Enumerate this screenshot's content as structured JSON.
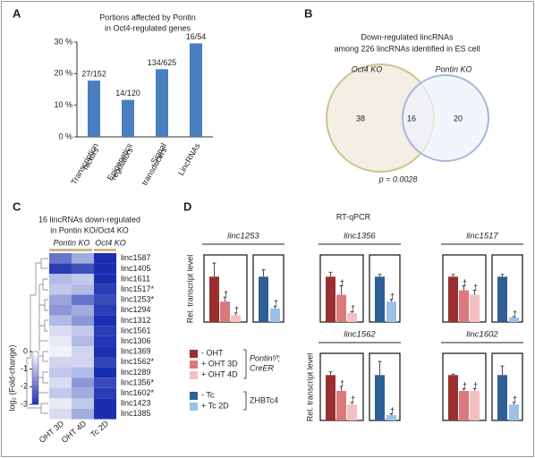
{
  "chart_data": [
    {
      "type": "bar",
      "panel": "A",
      "title": [
        "Portions affected by Pontin",
        "in Oct4-regulated genes"
      ],
      "categories": [
        [
          "Transcription",
          "factors"
        ],
        [
          "Epigenetics",
          "regulators"
        ],
        [
          "Signal",
          "transducers"
        ],
        [
          "LincRNAs"
        ]
      ],
      "values": [
        17.8,
        11.7,
        21.4,
        29.6
      ],
      "value_labels": [
        "27/152",
        "14/120",
        "134/625",
        "16/54"
      ],
      "color": "#4a7fbf",
      "ylim": [
        0,
        30
      ],
      "yticks": [
        {
          "value": 0,
          "label": "0 %"
        },
        {
          "value": 10,
          "label": "10 %"
        },
        {
          "value": 20,
          "label": "20 %"
        },
        {
          "value": 30,
          "label": "30 %"
        }
      ]
    },
    {
      "type": "venn",
      "panel": "B",
      "title": [
        "Down-regulated lincRNAs",
        "among 226 lincRNAs identified in ES cell"
      ],
      "sets": [
        {
          "name": "Oct4 KO",
          "color": "#cfc28f",
          "fill": "#efeadb"
        },
        {
          "name": "Pontin KO",
          "color": "#a9b5da",
          "fill": "#eef1f9"
        }
      ],
      "values": [
        38,
        16,
        20
      ],
      "annotation": "p = 0.0028"
    },
    {
      "type": "heatmap",
      "panel": "C",
      "title": [
        "16 lincRNAs down-regulated",
        "in Pontin KO/Oct4 KO"
      ],
      "column_groups": [
        "Pontin KO",
        "Oct4 KO"
      ],
      "columns": [
        "OHT 3D",
        "OHT 4D",
        "Tc 2D"
      ],
      "rows": [
        "linc1587",
        "linc1405",
        "linc1611",
        "linc1517*",
        "linc1253*",
        "linc1294",
        "linc1312",
        "linc1561",
        "linc1306",
        "linc1369",
        "linc1562*",
        "linc1289",
        "linc1356*",
        "linc1602*",
        "linc1423",
        "linc1385"
      ],
      "values": [
        [
          -2.0,
          -1.2,
          -3.0
        ],
        [
          -2.8,
          -2.5,
          -3.0
        ],
        [
          -1.0,
          -0.8,
          -3.0
        ],
        [
          -0.8,
          -1.0,
          -2.8
        ],
        [
          -1.3,
          -2.0,
          -2.6
        ],
        [
          -1.5,
          -1.2,
          -2.8
        ],
        [
          -1.0,
          -1.5,
          -3.0
        ],
        [
          -0.5,
          -0.8,
          -2.8
        ],
        [
          -0.3,
          -1.0,
          -2.9
        ],
        [
          -0.2,
          -0.6,
          -3.0
        ],
        [
          -0.6,
          -0.6,
          -2.7
        ],
        [
          -0.8,
          -1.0,
          -3.0
        ],
        [
          -0.5,
          -1.5,
          -2.6
        ],
        [
          -0.8,
          -1.2,
          -2.8
        ],
        [
          -0.3,
          -0.8,
          -3.0
        ],
        [
          -0.5,
          -1.2,
          -3.0
        ]
      ],
      "colors": [
        "#1a2fb0",
        "#ffffff"
      ],
      "clim": [
        -3,
        0
      ],
      "cticks": [
        0,
        -1,
        -2,
        -3
      ],
      "colorbar_label": "log₂ (Fold-change)"
    },
    {
      "type": "grouped_bar",
      "panel": "D",
      "title": "RT-qPCR",
      "ylabel": "Rel. transcript level",
      "ylim": [
        0,
        1.4
      ],
      "series": [
        {
          "name": "- OHT",
          "color": "#9b2f2f"
        },
        {
          "name": "+ OHT 3D",
          "color": "#d9797a"
        },
        {
          "name": "+ OHT 4D",
          "color": "#f2c0c0"
        },
        {
          "name": "- Tc",
          "color": "#2e5f95"
        },
        {
          "name": "+ Tc 2D",
          "color": "#9dc0e6"
        }
      ],
      "legend_groups": [
        [
          "Pontinᶠ/ᶠ;",
          "CreER"
        ],
        [
          "ZHBTc4"
        ]
      ],
      "panels": [
        {
          "gene": "linc1253",
          "groups": [
            {
              "values": [
                1.0,
                0.45,
                0.15
              ],
              "errors": [
                0.3,
                0.1,
                0.05
              ],
              "marks": [
                null,
                "†",
                "†"
              ]
            },
            {
              "values": [
                1.0,
                0.3
              ],
              "errors": [
                0.15,
                0.05
              ],
              "marks": [
                null,
                "†"
              ]
            }
          ]
        },
        {
          "gene": "linc1356",
          "groups": [
            {
              "values": [
                1.0,
                0.6,
                0.2
              ],
              "errors": [
                0.1,
                0.2,
                0.03
              ],
              "marks": [
                null,
                "†",
                "†"
              ]
            },
            {
              "values": [
                1.0,
                0.45
              ],
              "errors": [
                0.05,
                0.05
              ],
              "marks": [
                null,
                "†"
              ]
            }
          ]
        },
        {
          "gene": "linc1517",
          "groups": [
            {
              "values": [
                1.0,
                0.7,
                0.6
              ],
              "errors": [
                0.05,
                0.1,
                0.1
              ],
              "marks": [
                null,
                "†",
                "†"
              ]
            },
            {
              "values": [
                1.0,
                0.1
              ],
              "errors": [
                0.05,
                0.02
              ],
              "marks": [
                null,
                "†"
              ]
            }
          ]
        },
        {
          "gene": "linc1562",
          "groups": [
            {
              "values": [
                1.0,
                0.65,
                0.35
              ],
              "errors": [
                0.07,
                0.1,
                0.05
              ],
              "marks": [
                null,
                "†",
                "†"
              ]
            },
            {
              "values": [
                1.0,
                0.12
              ],
              "errors": [
                0.3,
                0.03
              ],
              "marks": [
                null,
                "†"
              ]
            }
          ]
        },
        {
          "gene": "linc1602",
          "groups": [
            {
              "values": [
                1.0,
                0.65,
                0.65
              ],
              "errors": [
                0.02,
                0.05,
                0.05
              ],
              "marks": [
                null,
                "†",
                "†"
              ]
            },
            {
              "values": [
                1.0,
                0.35
              ],
              "errors": [
                0.2,
                0.05
              ],
              "marks": [
                null,
                "†"
              ]
            }
          ]
        }
      ]
    }
  ]
}
